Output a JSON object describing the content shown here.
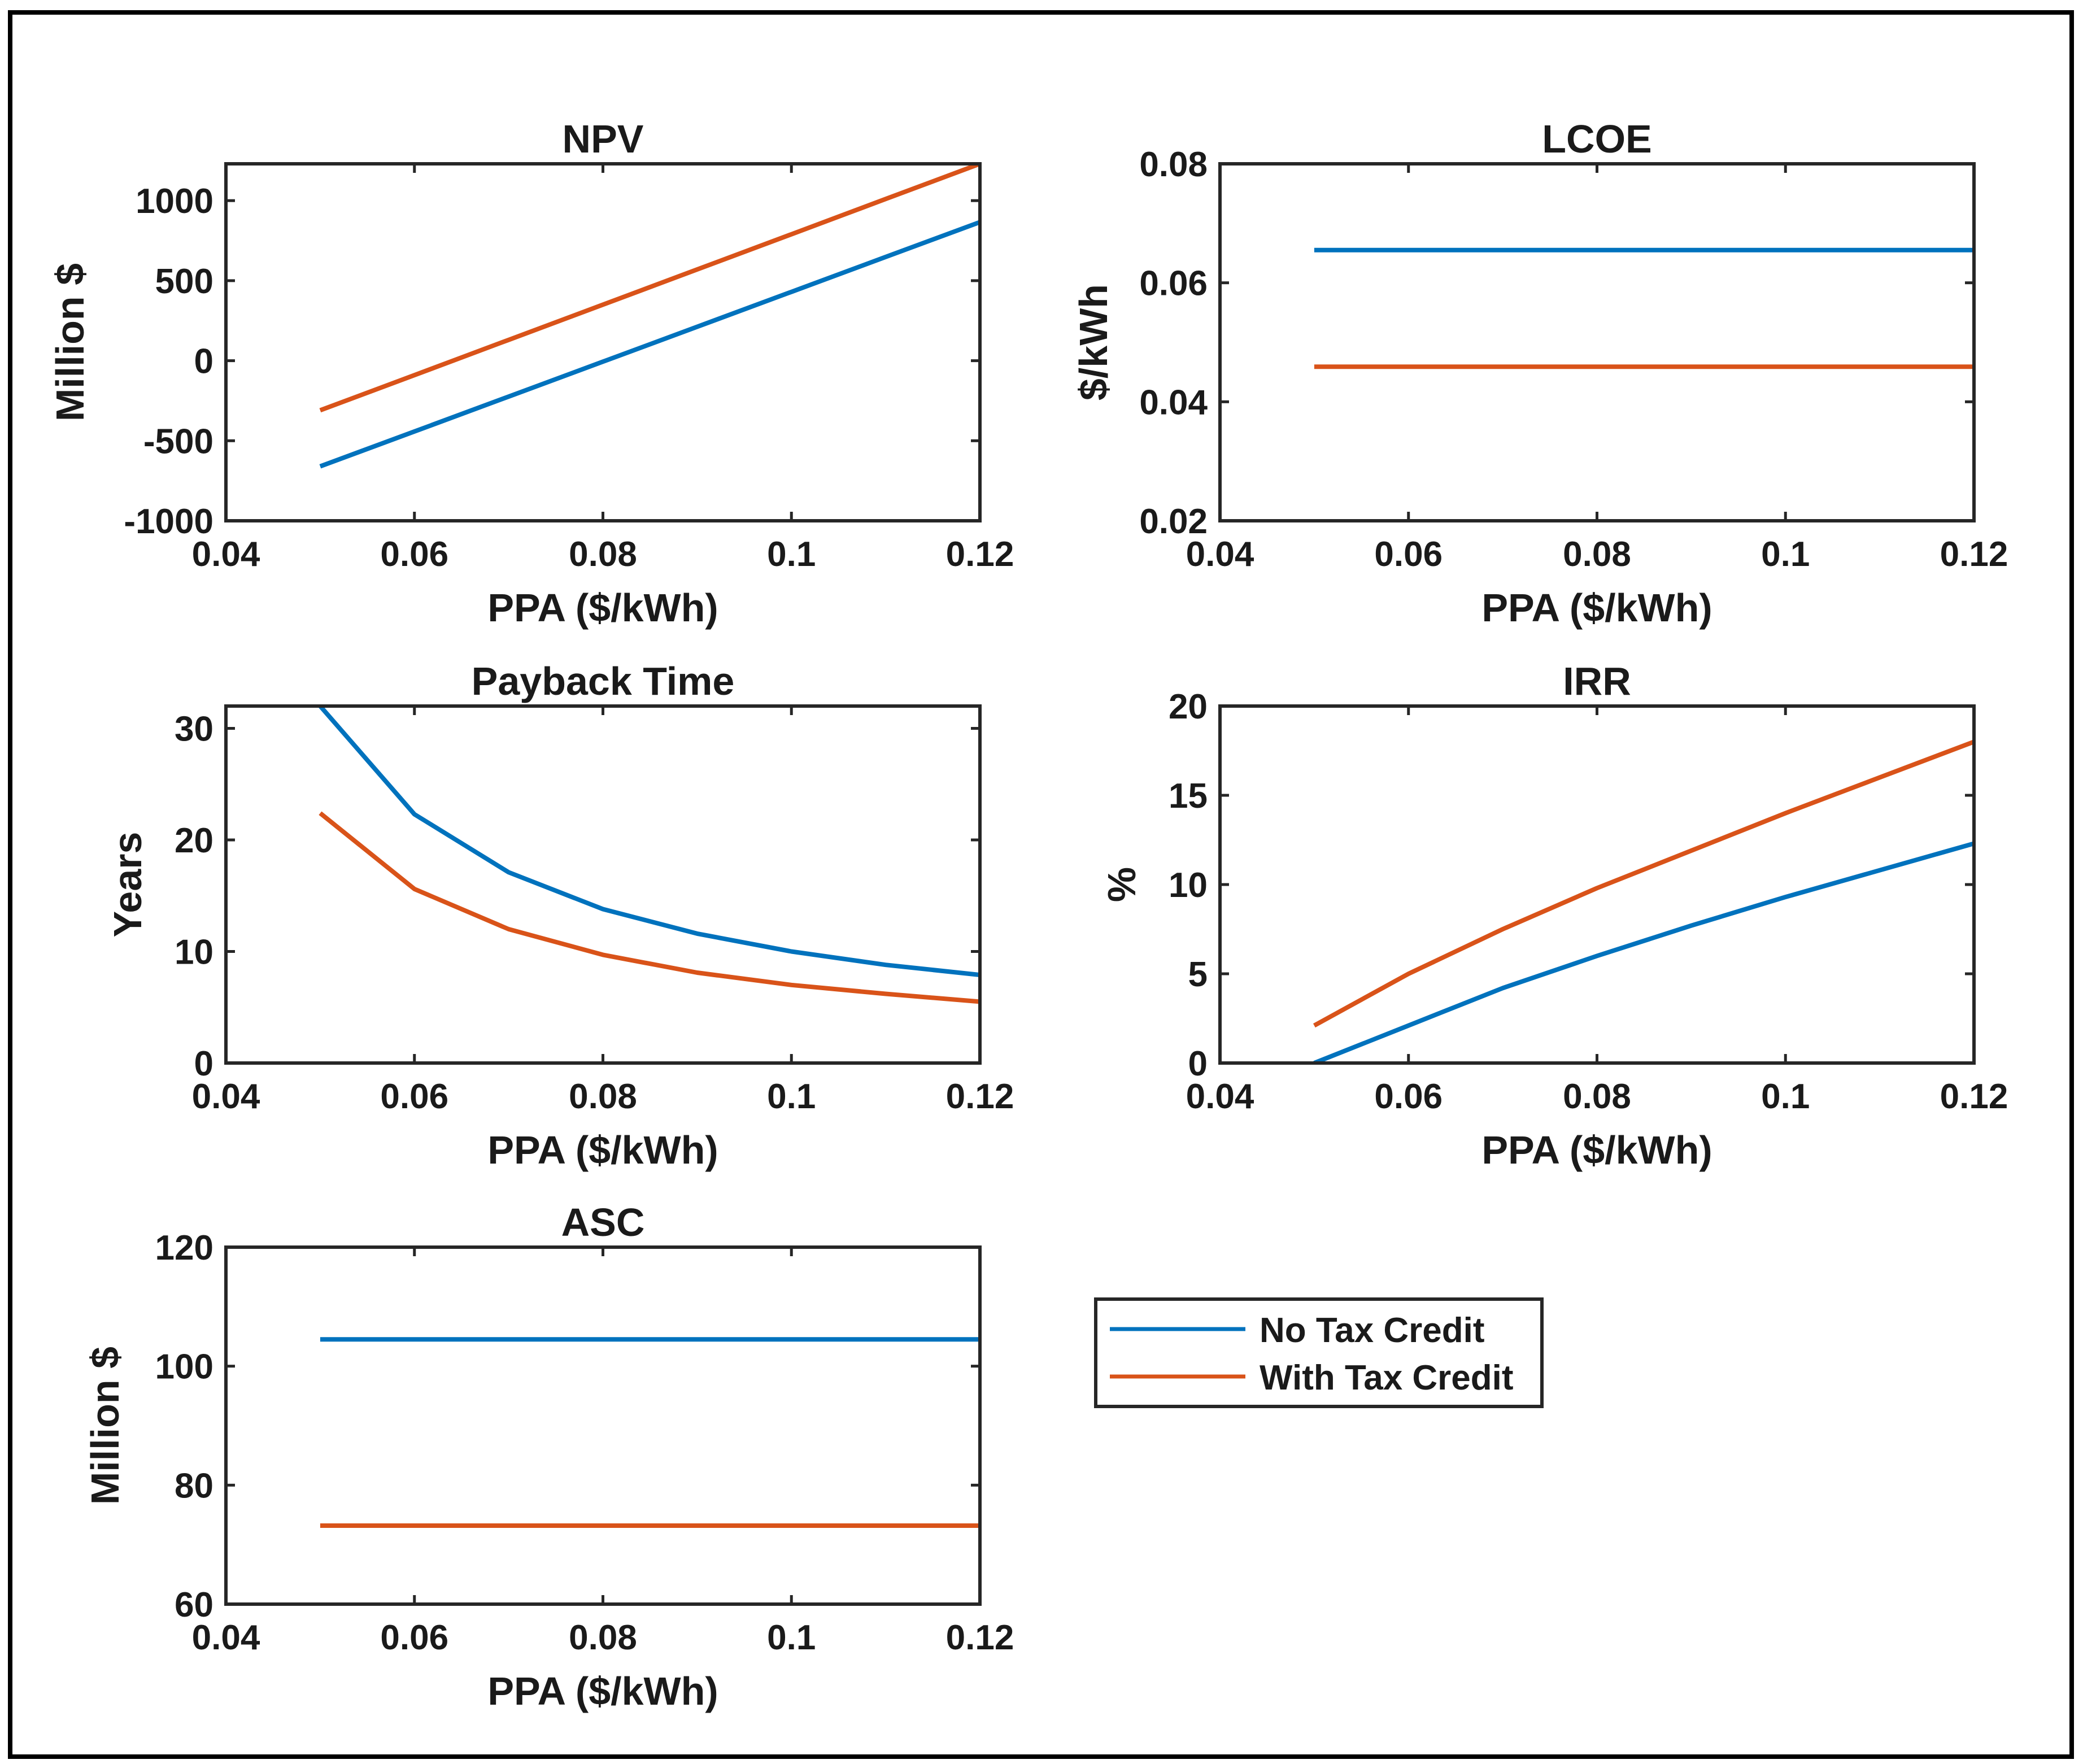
{
  "chart_data": [
    {
      "id": "npv",
      "type": "line",
      "title": "NPV",
      "xlabel": "PPA ($/kWh)",
      "ylabel": "Million $",
      "xlim": [
        0.04,
        0.12
      ],
      "ylim": [
        -1000,
        1230
      ],
      "xticks": [
        0.04,
        0.06,
        0.08,
        0.1,
        0.12
      ],
      "xtick_labels": [
        "0.04",
        "0.06",
        "0.08",
        "0.1",
        "0.12"
      ],
      "yticks": [
        -1000,
        -500,
        0,
        500,
        1000
      ],
      "ytick_labels": [
        "-1000",
        "-500",
        "0",
        "500",
        "1000"
      ],
      "x": [
        0.05,
        0.06,
        0.07,
        0.08,
        0.09,
        0.1,
        0.11,
        0.12
      ],
      "series": [
        {
          "name": "No Tax Credit",
          "values": [
            -660,
            -442,
            -224,
            -6,
            212,
            430,
            648,
            866
          ]
        },
        {
          "name": "With Tax Credit",
          "values": [
            -310,
            -90,
            130,
            350,
            570,
            790,
            1010,
            1230
          ]
        }
      ]
    },
    {
      "id": "lcoe",
      "type": "line",
      "title": "LCOE",
      "xlabel": "PPA ($/kWh)",
      "ylabel": "$/kWh",
      "xlim": [
        0.04,
        0.12
      ],
      "ylim": [
        0.02,
        0.08
      ],
      "xticks": [
        0.04,
        0.06,
        0.08,
        0.1,
        0.12
      ],
      "xtick_labels": [
        "0.04",
        "0.06",
        "0.08",
        "0.1",
        "0.12"
      ],
      "yticks": [
        0.02,
        0.04,
        0.06,
        0.08
      ],
      "ytick_labels": [
        "0.02",
        "0.04",
        "0.06",
        "0.08"
      ],
      "x": [
        0.05,
        0.06,
        0.07,
        0.08,
        0.09,
        0.1,
        0.11,
        0.12
      ],
      "series": [
        {
          "name": "No Tax Credit",
          "values": [
            0.0655,
            0.0655,
            0.0655,
            0.0655,
            0.0655,
            0.0655,
            0.0655,
            0.0655
          ]
        },
        {
          "name": "With Tax Credit",
          "values": [
            0.0459,
            0.0459,
            0.0459,
            0.0459,
            0.0459,
            0.0459,
            0.0459,
            0.0459
          ]
        }
      ]
    },
    {
      "id": "payback",
      "type": "line",
      "title": "Payback Time",
      "xlabel": "PPA ($/kWh)",
      "ylabel": "Years",
      "xlim": [
        0.04,
        0.12
      ],
      "ylim": [
        0,
        32
      ],
      "xticks": [
        0.04,
        0.06,
        0.08,
        0.1,
        0.12
      ],
      "xtick_labels": [
        "0.04",
        "0.06",
        "0.08",
        "0.1",
        "0.12"
      ],
      "yticks": [
        0,
        10,
        20,
        30
      ],
      "ytick_labels": [
        "0",
        "10",
        "20",
        "30"
      ],
      "x": [
        0.05,
        0.06,
        0.07,
        0.08,
        0.09,
        0.1,
        0.11,
        0.12
      ],
      "series": [
        {
          "name": "No Tax Credit",
          "values": [
            32,
            22.3,
            17.1,
            13.8,
            11.6,
            10.0,
            8.8,
            7.9
          ]
        },
        {
          "name": "With Tax Credit",
          "values": [
            22.4,
            15.6,
            12.0,
            9.7,
            8.1,
            7.0,
            6.2,
            5.5
          ]
        }
      ]
    },
    {
      "id": "irr",
      "type": "line",
      "title": "IRR",
      "xlabel": "PPA ($/kWh)",
      "ylabel": "%",
      "xlim": [
        0.04,
        0.12
      ],
      "ylim": [
        0,
        20
      ],
      "xticks": [
        0.04,
        0.06,
        0.08,
        0.1,
        0.12
      ],
      "xtick_labels": [
        "0.04",
        "0.06",
        "0.08",
        "0.1",
        "0.12"
      ],
      "yticks": [
        0,
        5,
        10,
        15,
        20
      ],
      "ytick_labels": [
        "0",
        "5",
        "10",
        "15",
        "20"
      ],
      "x": [
        0.05,
        0.06,
        0.07,
        0.08,
        0.09,
        0.1,
        0.11,
        0.12
      ],
      "series": [
        {
          "name": "No Tax Credit",
          "values": [
            0,
            2.1,
            4.2,
            6.0,
            7.7,
            9.3,
            10.8,
            12.3
          ]
        },
        {
          "name": "With Tax Credit",
          "values": [
            2.1,
            5.0,
            7.5,
            9.8,
            11.9,
            14.0,
            16.0,
            18.0
          ]
        }
      ]
    },
    {
      "id": "asc",
      "type": "line",
      "title": "ASC",
      "xlabel": "PPA ($/kWh)",
      "ylabel": "Million $",
      "xlim": [
        0.04,
        0.12
      ],
      "ylim": [
        60,
        120
      ],
      "xticks": [
        0.04,
        0.06,
        0.08,
        0.1,
        0.12
      ],
      "xtick_labels": [
        "0.04",
        "0.06",
        "0.08",
        "0.1",
        "0.12"
      ],
      "yticks": [
        60,
        80,
        100,
        120
      ],
      "ytick_labels": [
        "60",
        "80",
        "100",
        "120"
      ],
      "x": [
        0.05,
        0.06,
        0.07,
        0.08,
        0.09,
        0.1,
        0.11,
        0.12
      ],
      "series": [
        {
          "name": "No Tax Credit",
          "values": [
            104.5,
            104.5,
            104.5,
            104.5,
            104.5,
            104.5,
            104.5,
            104.5
          ]
        },
        {
          "name": "With Tax Credit",
          "values": [
            73.2,
            73.2,
            73.2,
            73.2,
            73.2,
            73.2,
            73.2,
            73.2
          ]
        }
      ]
    }
  ],
  "legend": {
    "placement": "lower-right",
    "items": [
      {
        "label": "No Tax Credit",
        "color": "#0072BD"
      },
      {
        "label": "With Tax Credit",
        "color": "#D95319"
      }
    ]
  },
  "colors": {
    "series": [
      "#0072BD",
      "#D95319"
    ],
    "axes": "#262626",
    "frame": "#000000"
  }
}
